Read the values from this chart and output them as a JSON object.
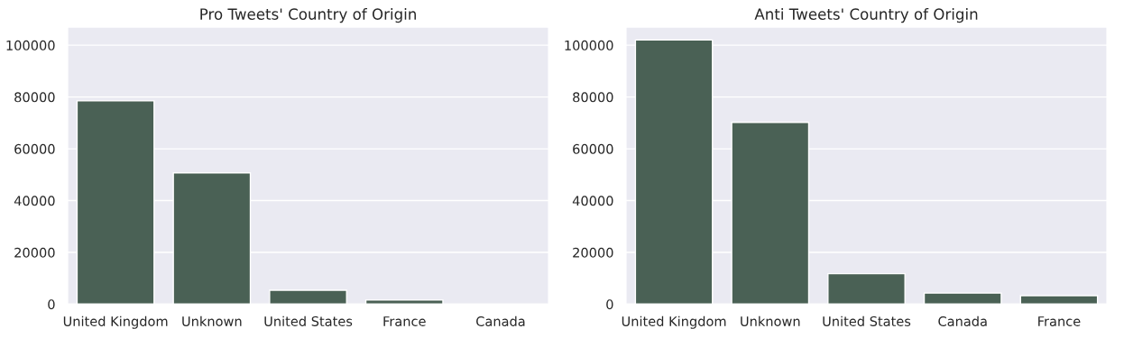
{
  "chart_data": [
    {
      "type": "bar",
      "title": "Pro Tweets' Country of Origin",
      "categories": [
        "United Kingdom",
        "Unknown",
        "United States",
        "France",
        "Canada"
      ],
      "values": [
        78500,
        50700,
        5400,
        1600,
        null
      ],
      "color": "#4a6155",
      "ylim": [
        0,
        107000
      ],
      "yticks": [
        0,
        20000,
        40000,
        60000,
        80000,
        100000
      ],
      "grid": "y"
    },
    {
      "type": "bar",
      "title": "Anti Tweets' Country of Origin",
      "categories": [
        "United Kingdom",
        "Unknown",
        "United States",
        "Canada",
        "France"
      ],
      "values": [
        102000,
        70200,
        11800,
        4300,
        3300
      ],
      "color": "#4a6155",
      "ylim": [
        0,
        107000
      ],
      "yticks": [
        0,
        20000,
        40000,
        60000,
        80000,
        100000
      ],
      "grid": "y"
    }
  ]
}
